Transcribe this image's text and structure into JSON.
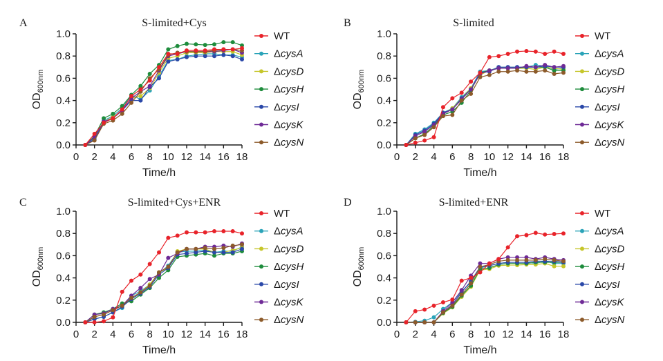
{
  "figure": {
    "series_colors": {
      "WT": "#e8232a",
      "cysA": "#2aa3b8",
      "cysD": "#c6c62a",
      "cysH": "#1e8c3c",
      "cysI": "#2a48a8",
      "cysK": "#6e2a96",
      "cysN": "#8c5a2a"
    }
  },
  "chart_data": [
    {
      "type": "line",
      "panel": "A",
      "title": "S-limited+Cys",
      "xlabel": "Time/h",
      "ylabel": "OD",
      "ylabel_sub": "600nm",
      "xlim": [
        0,
        18
      ],
      "ylim": [
        0,
        1.0
      ],
      "xticks": [
        "0",
        "2",
        "4",
        "6",
        "8",
        "10",
        "12",
        "14",
        "16",
        "18"
      ],
      "yticks": [
        "0.0",
        "0.2",
        "0.4",
        "0.6",
        "0.8",
        "1.0"
      ],
      "legend": "right",
      "x": [
        1,
        2,
        3,
        4,
        5,
        6,
        7,
        8,
        9,
        10,
        11,
        12,
        13,
        14,
        15,
        16,
        17,
        18
      ],
      "series": [
        {
          "key": "WT",
          "prefix": "",
          "name": "WT",
          "values": [
            0,
            0.1,
            0.2,
            0.24,
            0.32,
            0.44,
            0.5,
            0.58,
            0.7,
            0.82,
            0.82,
            0.85,
            0.85,
            0.85,
            0.86,
            0.86,
            0.86,
            0.87
          ]
        },
        {
          "key": "cysA",
          "prefix": "Δ",
          "name": "cysA",
          "values": [
            0,
            0.06,
            0.22,
            0.26,
            0.33,
            0.45,
            0.41,
            0.49,
            0.62,
            0.76,
            0.77,
            0.8,
            0.81,
            0.82,
            0.82,
            0.81,
            0.81,
            0.79
          ]
        },
        {
          "key": "cysD",
          "prefix": "Δ",
          "name": "cysD",
          "values": [
            0,
            0.07,
            0.21,
            0.25,
            0.31,
            0.42,
            0.44,
            0.51,
            0.65,
            0.78,
            0.8,
            0.83,
            0.83,
            0.83,
            0.84,
            0.84,
            0.84,
            0.81
          ]
        },
        {
          "key": "cysH",
          "prefix": "Δ",
          "name": "cysH",
          "values": [
            0,
            0.08,
            0.24,
            0.28,
            0.35,
            0.45,
            0.53,
            0.64,
            0.72,
            0.86,
            0.89,
            0.91,
            0.905,
            0.9,
            0.905,
            0.925,
            0.925,
            0.895
          ]
        },
        {
          "key": "cysI",
          "prefix": "Δ",
          "name": "cysI",
          "values": [
            0,
            0.05,
            0.2,
            0.24,
            0.31,
            0.4,
            0.4,
            0.52,
            0.6,
            0.75,
            0.77,
            0.79,
            0.8,
            0.8,
            0.8,
            0.81,
            0.8,
            0.77
          ]
        },
        {
          "key": "cysK",
          "prefix": "Δ",
          "name": "cysK",
          "values": [
            0,
            0.07,
            0.21,
            0.24,
            0.31,
            0.42,
            0.48,
            0.53,
            0.67,
            0.8,
            0.82,
            0.84,
            0.84,
            0.84,
            0.84,
            0.85,
            0.86,
            0.83
          ]
        },
        {
          "key": "cysN",
          "prefix": "Δ",
          "name": "cysN",
          "values": [
            0,
            0.04,
            0.19,
            0.22,
            0.28,
            0.38,
            0.48,
            0.6,
            0.68,
            0.81,
            0.83,
            0.84,
            0.84,
            0.84,
            0.85,
            0.86,
            0.86,
            0.85
          ]
        }
      ]
    },
    {
      "type": "line",
      "panel": "B",
      "title": "S-limited",
      "xlabel": "Time/h",
      "ylabel": "OD",
      "ylabel_sub": "600nm",
      "xlim": [
        0,
        18
      ],
      "ylim": [
        0,
        1.0
      ],
      "xticks": [
        "0",
        "2",
        "4",
        "6",
        "8",
        "10",
        "12",
        "14",
        "16",
        "18"
      ],
      "yticks": [
        "0.0",
        "0.2",
        "0.4",
        "0.6",
        "0.8",
        "1.0"
      ],
      "legend": "right",
      "x": [
        1,
        2,
        3,
        4,
        5,
        6,
        7,
        8,
        9,
        10,
        11,
        12,
        13,
        14,
        15,
        16,
        17,
        18
      ],
      "series": [
        {
          "key": "WT",
          "prefix": "",
          "name": "WT",
          "values": [
            0,
            0.02,
            0.04,
            0.07,
            0.34,
            0.42,
            0.47,
            0.57,
            0.65,
            0.79,
            0.8,
            0.82,
            0.84,
            0.845,
            0.84,
            0.82,
            0.84,
            0.82
          ]
        },
        {
          "key": "cysA",
          "prefix": "Δ",
          "name": "cysA",
          "values": [
            0,
            0.1,
            0.14,
            0.2,
            0.29,
            0.33,
            0.43,
            0.51,
            0.66,
            0.67,
            0.7,
            0.7,
            0.7,
            0.7,
            0.72,
            0.71,
            0.68,
            0.69
          ]
        },
        {
          "key": "cysD",
          "prefix": "Δ",
          "name": "cysD",
          "values": [
            0,
            0.06,
            0.1,
            0.17,
            0.28,
            0.33,
            0.42,
            0.51,
            0.63,
            0.67,
            0.69,
            0.69,
            0.69,
            0.69,
            0.68,
            0.7,
            0.69,
            0.68
          ]
        },
        {
          "key": "cysH",
          "prefix": "Δ",
          "name": "cysH",
          "values": [
            0,
            0.06,
            0.1,
            0.17,
            0.27,
            0.3,
            0.38,
            0.49,
            0.65,
            0.67,
            0.69,
            0.69,
            0.69,
            0.7,
            0.7,
            0.7,
            0.67,
            0.67
          ]
        },
        {
          "key": "cysI",
          "prefix": "Δ",
          "name": "cysI",
          "values": [
            0,
            0.09,
            0.13,
            0.19,
            0.29,
            0.32,
            0.42,
            0.5,
            0.65,
            0.66,
            0.7,
            0.7,
            0.7,
            0.7,
            0.7,
            0.71,
            0.7,
            0.7
          ]
        },
        {
          "key": "cysK",
          "prefix": "Δ",
          "name": "cysK",
          "values": [
            0,
            0.08,
            0.12,
            0.18,
            0.28,
            0.32,
            0.41,
            0.5,
            0.64,
            0.67,
            0.69,
            0.69,
            0.69,
            0.71,
            0.7,
            0.72,
            0.7,
            0.71
          ]
        },
        {
          "key": "cysN",
          "prefix": "Δ",
          "name": "cysN",
          "values": [
            0,
            0.06,
            0.09,
            0.16,
            0.26,
            0.27,
            0.4,
            0.46,
            0.61,
            0.63,
            0.66,
            0.66,
            0.67,
            0.66,
            0.66,
            0.67,
            0.64,
            0.65
          ]
        }
      ]
    },
    {
      "type": "line",
      "panel": "C",
      "title": "S-limited+Cys+ENR",
      "xlabel": "Time/h",
      "ylabel": "OD",
      "ylabel_sub": "600nm",
      "xlim": [
        0,
        18
      ],
      "ylim": [
        0,
        1.0
      ],
      "xticks": [
        "0",
        "2",
        "4",
        "6",
        "8",
        "10",
        "12",
        "14",
        "16",
        "18"
      ],
      "yticks": [
        "0.0",
        "0.2",
        "0.4",
        "0.6",
        "0.8",
        "1.0"
      ],
      "legend": "right",
      "x": [
        1,
        2,
        3,
        4,
        5,
        6,
        7,
        8,
        9,
        10,
        11,
        12,
        13,
        14,
        15,
        16,
        17,
        18
      ],
      "series": [
        {
          "key": "WT",
          "prefix": "",
          "name": "WT",
          "values": [
            0,
            0,
            0.01,
            0.045,
            0.275,
            0.375,
            0.43,
            0.525,
            0.63,
            0.76,
            0.78,
            0.81,
            0.81,
            0.81,
            0.82,
            0.82,
            0.82,
            0.8
          ]
        },
        {
          "key": "cysA",
          "prefix": "Δ",
          "name": "cysA",
          "values": [
            0,
            0.03,
            0.05,
            0.09,
            0.13,
            0.24,
            0.28,
            0.34,
            0.44,
            0.51,
            0.63,
            0.64,
            0.64,
            0.65,
            0.63,
            0.64,
            0.64,
            0.68
          ]
        },
        {
          "key": "cysD",
          "prefix": "Δ",
          "name": "cysD",
          "values": [
            0,
            0.05,
            0.07,
            0.11,
            0.15,
            0.22,
            0.27,
            0.34,
            0.45,
            0.49,
            0.64,
            0.66,
            0.66,
            0.66,
            0.63,
            0.63,
            0.65,
            0.67
          ]
        },
        {
          "key": "cysH",
          "prefix": "Δ",
          "name": "cysH",
          "values": [
            0,
            0.07,
            0.09,
            0.12,
            0.17,
            0.19,
            0.25,
            0.31,
            0.4,
            0.47,
            0.59,
            0.6,
            0.61,
            0.62,
            0.6,
            0.62,
            0.62,
            0.64
          ]
        },
        {
          "key": "cysI",
          "prefix": "Δ",
          "name": "cysI",
          "values": [
            0,
            0.03,
            0.05,
            0.09,
            0.14,
            0.21,
            0.26,
            0.32,
            0.43,
            0.49,
            0.61,
            0.62,
            0.63,
            0.64,
            0.63,
            0.63,
            0.63,
            0.66
          ]
        },
        {
          "key": "cysK",
          "prefix": "Δ",
          "name": "cysK",
          "values": [
            0,
            0.07,
            0.08,
            0.12,
            0.15,
            0.24,
            0.31,
            0.39,
            0.43,
            0.58,
            0.62,
            0.66,
            0.66,
            0.68,
            0.68,
            0.69,
            0.68,
            0.71
          ]
        },
        {
          "key": "cysN",
          "prefix": "Δ",
          "name": "cysN",
          "values": [
            0,
            0.05,
            0.07,
            0.11,
            0.15,
            0.22,
            0.27,
            0.33,
            0.45,
            0.5,
            0.63,
            0.66,
            0.66,
            0.67,
            0.66,
            0.67,
            0.69,
            0.7
          ]
        }
      ]
    },
    {
      "type": "line",
      "panel": "D",
      "title": "S-limited+ENR",
      "xlabel": "Time/h",
      "ylabel": "OD",
      "ylabel_sub": "600nm",
      "xlim": [
        0,
        18
      ],
      "ylim": [
        0,
        1.0
      ],
      "xticks": [
        "0",
        "2",
        "4",
        "6",
        "8",
        "10",
        "12",
        "14",
        "16",
        "18"
      ],
      "yticks": [
        "0.0",
        "0.2",
        "0.4",
        "0.6",
        "0.8",
        "1.0"
      ],
      "legend": "right",
      "x": [
        1,
        2,
        3,
        4,
        5,
        6,
        7,
        8,
        9,
        10,
        11,
        12,
        13,
        14,
        15,
        16,
        17,
        18
      ],
      "series": [
        {
          "key": "WT",
          "prefix": "",
          "name": "WT",
          "values": [
            0,
            0.1,
            0.115,
            0.15,
            0.18,
            0.205,
            0.375,
            0.4,
            0.45,
            0.53,
            0.57,
            0.675,
            0.775,
            0.785,
            0.805,
            0.79,
            0.795,
            0.8
          ]
        },
        {
          "key": "cysA",
          "prefix": "Δ",
          "name": "cysA",
          "values": [
            0,
            0.005,
            0.015,
            0.045,
            0.12,
            0.18,
            0.28,
            0.36,
            0.49,
            0.51,
            0.53,
            0.54,
            0.54,
            0.54,
            0.53,
            0.55,
            0.53,
            0.53
          ]
        },
        {
          "key": "cysD",
          "prefix": "Δ",
          "name": "cysD",
          "values": [
            0,
            0,
            0,
            0,
            0.08,
            0.135,
            0.23,
            0.32,
            0.47,
            0.48,
            0.51,
            0.515,
            0.515,
            0.52,
            0.52,
            0.53,
            0.505,
            0.505
          ]
        },
        {
          "key": "cysH",
          "prefix": "Δ",
          "name": "cysH",
          "values": [
            0,
            0,
            0,
            0,
            0.085,
            0.14,
            0.24,
            0.33,
            0.48,
            0.49,
            0.52,
            0.53,
            0.53,
            0.53,
            0.54,
            0.54,
            0.54,
            0.54
          ]
        },
        {
          "key": "cysI",
          "prefix": "Δ",
          "name": "cysI",
          "values": [
            0,
            0,
            0,
            0,
            0.09,
            0.16,
            0.27,
            0.37,
            0.5,
            0.51,
            0.53,
            0.54,
            0.54,
            0.54,
            0.55,
            0.55,
            0.55,
            0.54
          ]
        },
        {
          "key": "cysK",
          "prefix": "Δ",
          "name": "cysK",
          "values": [
            0,
            0,
            0,
            0,
            0.1,
            0.18,
            0.29,
            0.42,
            0.53,
            0.53,
            0.57,
            0.585,
            0.585,
            0.585,
            0.57,
            0.585,
            0.57,
            0.56
          ]
        },
        {
          "key": "cysN",
          "prefix": "Δ",
          "name": "cysN",
          "values": [
            0,
            0,
            0,
            0,
            0.09,
            0.15,
            0.25,
            0.35,
            0.5,
            0.52,
            0.55,
            0.56,
            0.56,
            0.56,
            0.56,
            0.57,
            0.56,
            0.55
          ]
        }
      ]
    }
  ]
}
